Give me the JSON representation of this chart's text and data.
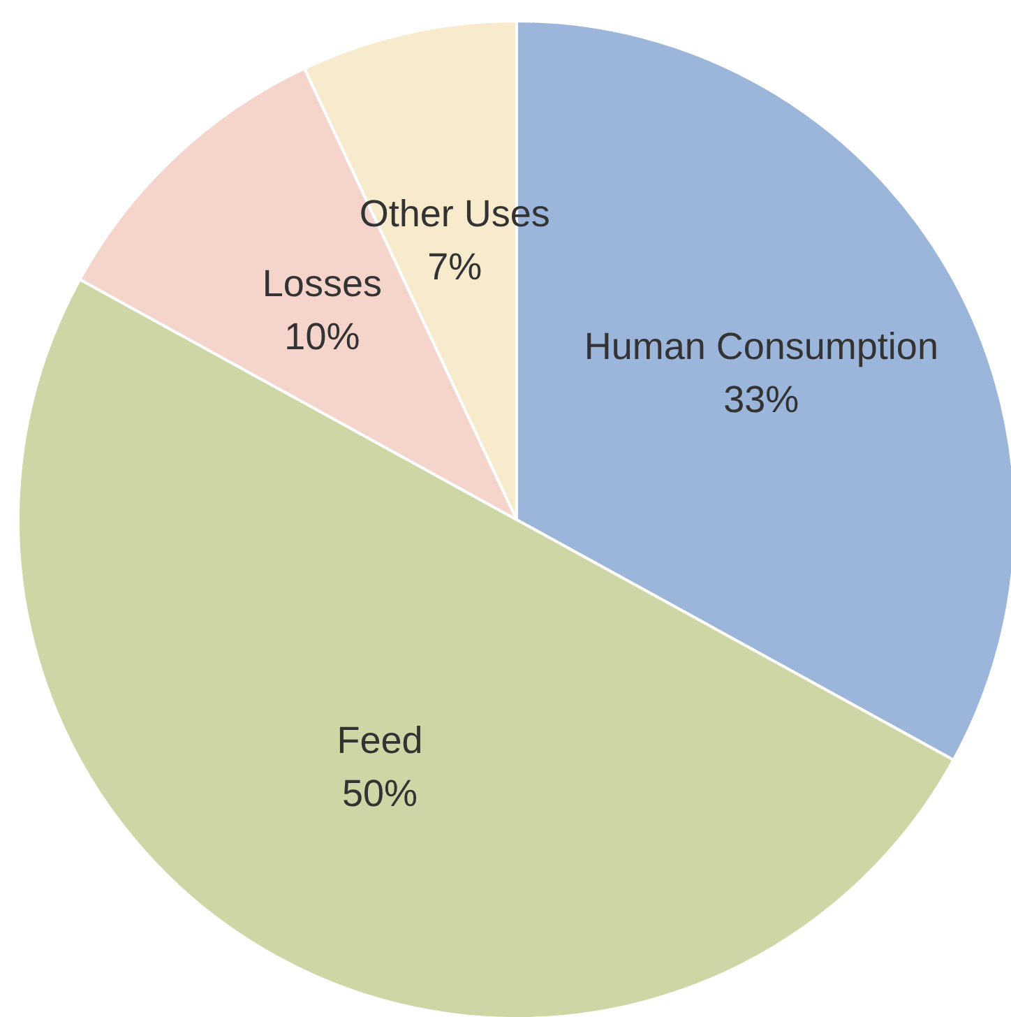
{
  "chart_data": {
    "type": "pie",
    "categories": [
      "Human Consumption",
      "Feed",
      "Losses",
      "Other Uses"
    ],
    "values": [
      33,
      50,
      10,
      7
    ],
    "colors": [
      "#9bb6da",
      "#cfd6a6",
      "#f5d4cb",
      "#f8eacc"
    ],
    "value_labels": [
      "33%",
      "50%",
      "10%",
      "7%"
    ]
  }
}
